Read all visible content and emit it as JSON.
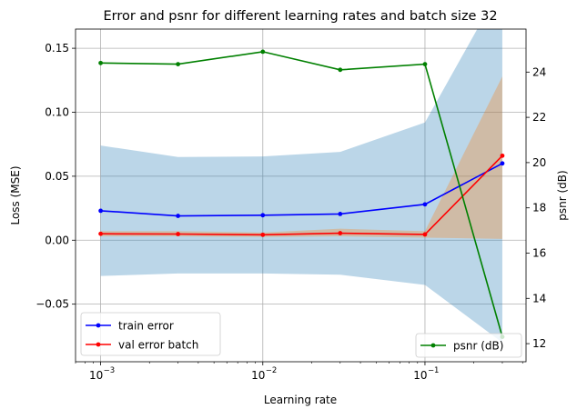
{
  "chart_data": {
    "type": "line",
    "title": "Error and psnr for different learning rates and batch size 32",
    "xlabel": "Learning rate",
    "ylabel": "Loss (MSE)",
    "y2label": "psnr (dB)",
    "xscale": "log",
    "grid": true,
    "x": [
      0.001,
      0.003,
      0.01,
      0.03,
      0.1,
      0.3
    ],
    "xlim": [
      0.0007,
      0.42
    ],
    "ylim": [
      -0.095,
      0.165
    ],
    "y2lim": [
      11.2,
      25.9
    ],
    "x_ticks": [
      {
        "value": 0.001,
        "base": "10",
        "exp": "−3"
      },
      {
        "value": 0.01,
        "base": "10",
        "exp": "−2"
      },
      {
        "value": 0.1,
        "base": "10",
        "exp": "−1"
      }
    ],
    "y_ticks": [
      {
        "value": -0.05,
        "label": "−0.05"
      },
      {
        "value": 0.0,
        "label": "0.00"
      },
      {
        "value": 0.05,
        "label": "0.05"
      },
      {
        "value": 0.1,
        "label": "0.10"
      },
      {
        "value": 0.15,
        "label": "0.15"
      }
    ],
    "y2_ticks": [
      {
        "value": 12,
        "label": "12"
      },
      {
        "value": 14,
        "label": "14"
      },
      {
        "value": 16,
        "label": "16"
      },
      {
        "value": 18,
        "label": "18"
      },
      {
        "value": 20,
        "label": "20"
      },
      {
        "value": 22,
        "label": "22"
      },
      {
        "value": 24,
        "label": "24"
      }
    ],
    "series": [
      {
        "name": "train error",
        "axis": "left",
        "color": "#0000ff",
        "values": [
          0.023,
          0.019,
          0.0195,
          0.0205,
          0.028,
          0.06
        ],
        "band_lower": [
          -0.028,
          -0.026,
          -0.026,
          -0.027,
          -0.035,
          -0.08
        ],
        "band_upper": [
          0.074,
          0.065,
          0.0655,
          0.069,
          0.092,
          0.2
        ],
        "band_color": "#1f77b4"
      },
      {
        "name": "val error batch",
        "axis": "left",
        "color": "#ff0000",
        "values": [
          0.005,
          0.0048,
          0.0042,
          0.0055,
          0.0045,
          0.066
        ],
        "band_lower": [
          0.003,
          0.003,
          0.0025,
          0.003,
          0.002,
          0.001
        ],
        "band_upper": [
          0.007,
          0.007,
          0.006,
          0.009,
          0.007,
          0.128
        ],
        "band_color": "#ff7f0e"
      },
      {
        "name": "psnr (dB)",
        "axis": "right",
        "color": "#008000",
        "values": [
          24.4,
          24.35,
          24.9,
          24.1,
          24.35,
          12.3
        ]
      }
    ],
    "legend_left_position": "lower-left",
    "legend_right_position": "lower-right"
  }
}
